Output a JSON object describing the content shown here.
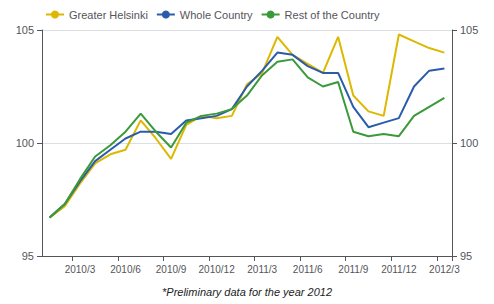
{
  "chart_data": {
    "type": "line",
    "subtitle": "*Preliminary data for the year 2012",
    "categories": [
      null,
      null,
      "2010/3",
      null,
      null,
      "2010/6",
      null,
      null,
      "2010/9",
      null,
      null,
      "2010/12",
      null,
      null,
      "2011/3",
      null,
      null,
      "2011/6",
      null,
      null,
      "2011/9",
      null,
      null,
      "2011/12",
      null,
      null,
      "2012/3"
    ],
    "series": [
      {
        "name": "Greater Helsinki",
        "color": "#ddb800",
        "values": [
          96.7,
          97.2,
          98.2,
          99.1,
          99.5,
          99.7,
          101.0,
          100.2,
          99.3,
          100.8,
          101.2,
          101.1,
          101.2,
          102.6,
          103.1,
          104.7,
          103.9,
          103.5,
          103.1,
          104.7,
          102.1,
          101.4,
          101.2,
          104.8,
          104.5,
          104.2,
          104.0
        ]
      },
      {
        "name": "Whole Country",
        "color": "#2a5caa",
        "values": [
          96.7,
          97.3,
          98.3,
          99.2,
          99.7,
          100.2,
          100.5,
          100.5,
          100.4,
          101.0,
          101.1,
          101.2,
          101.5,
          102.5,
          103.2,
          104.0,
          103.9,
          103.4,
          103.1,
          103.1,
          101.6,
          100.7,
          100.9,
          101.1,
          102.5,
          103.2,
          103.3
        ]
      },
      {
        "name": "Rest of the Country",
        "color": "#3a9a3a",
        "values": [
          96.7,
          97.3,
          98.4,
          99.4,
          99.9,
          100.5,
          101.3,
          100.5,
          99.8,
          100.9,
          101.2,
          101.3,
          101.5,
          102.1,
          103.0,
          103.6,
          103.7,
          102.9,
          102.5,
          102.7,
          100.5,
          100.3,
          100.4,
          100.3,
          101.2,
          101.6,
          102.0
        ]
      }
    ],
    "ylim": [
      95,
      105
    ],
    "yticks": [
      95,
      100,
      105
    ],
    "y2lim": [
      95,
      105
    ],
    "y2ticks": [
      95,
      100,
      105
    ],
    "grid": true,
    "legend": "upper left"
  }
}
